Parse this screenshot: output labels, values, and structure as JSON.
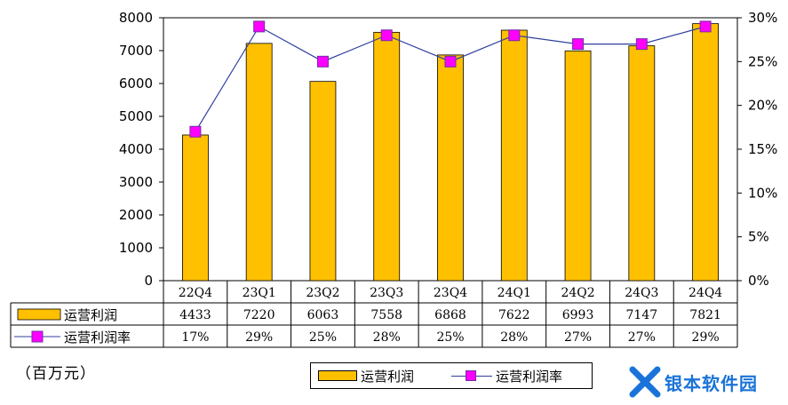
{
  "chart_data": {
    "type": "bar",
    "categories": [
      "22Q4",
      "23Q1",
      "23Q2",
      "23Q3",
      "23Q4",
      "24Q1",
      "24Q2",
      "24Q3",
      "24Q4"
    ],
    "series": [
      {
        "name": "运营利润",
        "type": "bar",
        "axis": "left",
        "values": [
          4433,
          7220,
          6063,
          7558,
          6868,
          7622,
          6993,
          7147,
          7821
        ],
        "color": "#ffc000"
      },
      {
        "name": "运营利润率",
        "type": "line",
        "axis": "right",
        "values": [
          17,
          29,
          25,
          28,
          25,
          28,
          27,
          27,
          29
        ],
        "value_labels": [
          "17%",
          "29%",
          "25%",
          "28%",
          "25%",
          "28%",
          "27%",
          "27%",
          "29%"
        ],
        "color": "#2f3f9f",
        "marker_color": "#ff00ff"
      }
    ],
    "ylim": [
      0,
      8000
    ],
    "y_ticks": [
      "0",
      "1000",
      "2000",
      "3000",
      "4000",
      "5000",
      "6000",
      "7000",
      "8000"
    ],
    "y2lim": [
      0,
      30
    ],
    "y2_ticks": [
      "0%",
      "5%",
      "10%",
      "15%",
      "20%",
      "25%",
      "30%"
    ],
    "ylabel": "（百万元）",
    "legend_position": "bottom",
    "data_table": true,
    "grid": false
  },
  "watermark": {
    "text": "银本软件园",
    "color": "#1a73d9"
  }
}
